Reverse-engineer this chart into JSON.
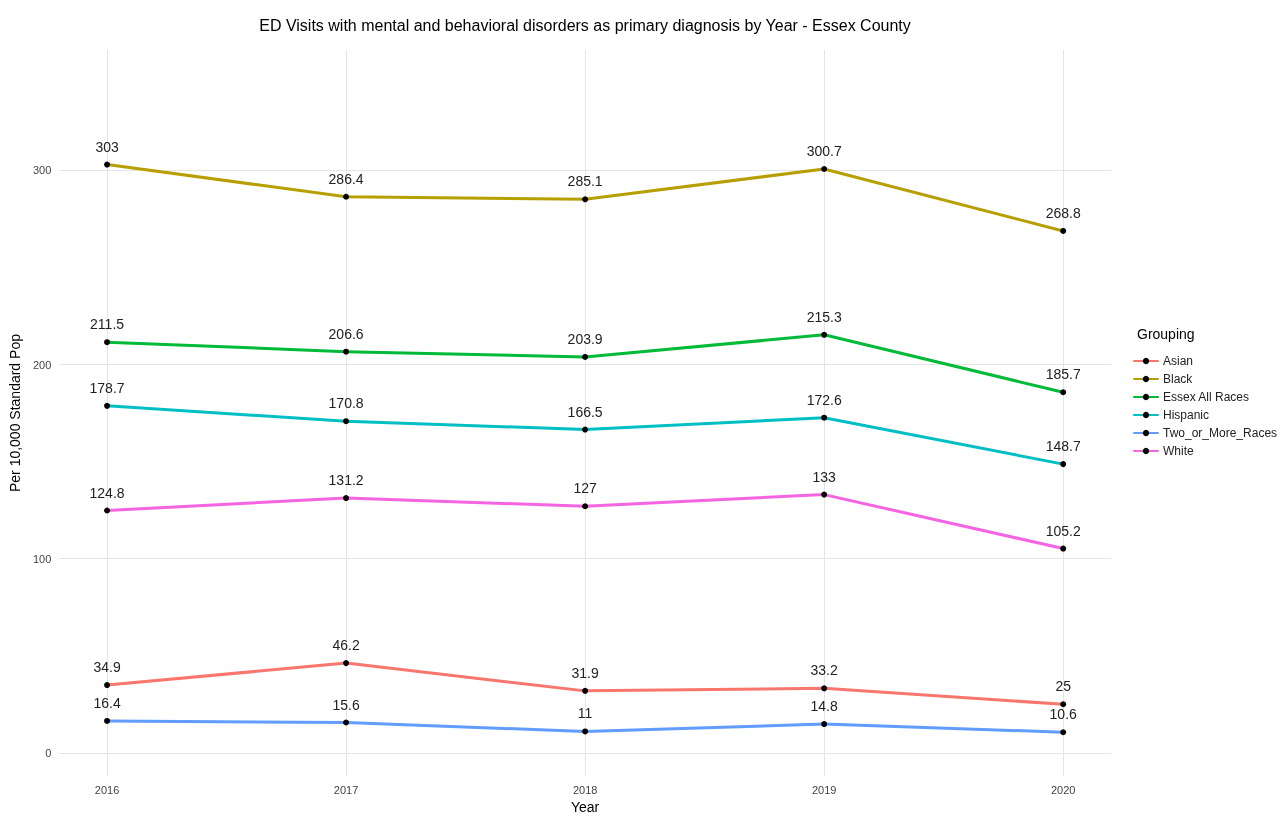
{
  "chart_data": {
    "type": "line",
    "title": "ED Visits with mental and behavioral disorders as primary diagnosis by Year - Essex County",
    "xlabel": "Year",
    "ylabel": "Per 10,000 Standard Pop",
    "legend_title": "Grouping",
    "x": [
      2016,
      2017,
      2018,
      2019,
      2020
    ],
    "series": [
      {
        "name": "Asian",
        "color": "#f8766d",
        "values": [
          34.9,
          46.2,
          31.9,
          33.2,
          25
        ]
      },
      {
        "name": "Black",
        "color": "#b79f00",
        "values": [
          303,
          286.4,
          285.1,
          300.7,
          268.8
        ]
      },
      {
        "name": "Essex All Races",
        "color": "#00ba38",
        "values": [
          211.5,
          206.6,
          203.9,
          215.3,
          185.7
        ]
      },
      {
        "name": "Hispanic",
        "color": "#00bfc4",
        "values": [
          178.7,
          170.8,
          166.5,
          172.6,
          148.7
        ]
      },
      {
        "name": "Two_or_More_Races",
        "color": "#619cff",
        "values": [
          16.4,
          15.6,
          11,
          14.8,
          10.6
        ]
      },
      {
        "name": "White",
        "color": "#f564e3",
        "values": [
          124.8,
          131.2,
          127,
          133,
          105.2
        ]
      }
    ],
    "xlim": [
      2015.8,
      2020.2
    ],
    "xticks": [
      2016,
      2017,
      2018,
      2019,
      2020
    ],
    "ylim": [
      -12,
      362
    ],
    "yticks": [
      0,
      100,
      200,
      300
    ],
    "grid": true,
    "legend": "right",
    "marker": "circle",
    "line_style": "solid",
    "data_labels": true
  }
}
